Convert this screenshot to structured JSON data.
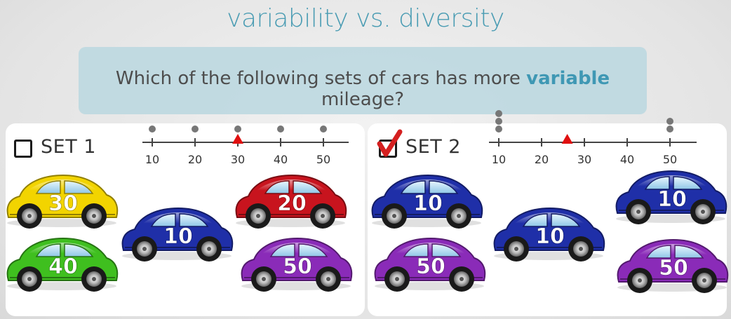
{
  "title": "variability vs. diversity",
  "question": {
    "prefix": "Which of the following sets of cars has more ",
    "emphasis": "variable",
    "suffix": " mileage?"
  },
  "sets": [
    {
      "label": "SET 1",
      "checked": false,
      "axis_ticks": [
        "10",
        "20",
        "30",
        "40",
        "50"
      ],
      "dots": [
        10,
        20,
        30,
        40,
        50
      ],
      "mean": 30,
      "cars": [
        {
          "mileage": "30",
          "color": "#f2d400"
        },
        {
          "mileage": "20",
          "color": "#c8141e"
        },
        {
          "mileage": "10",
          "color": "#1f2fa8"
        },
        {
          "mileage": "40",
          "color": "#3fbf1f"
        },
        {
          "mileage": "50",
          "color": "#8a2bb8"
        }
      ]
    },
    {
      "label": "SET 2",
      "checked": true,
      "axis_ticks": [
        "10",
        "20",
        "30",
        "40",
        "50"
      ],
      "dots": [
        10,
        10,
        10,
        50,
        50
      ],
      "mean": 26,
      "cars": [
        {
          "mileage": "10",
          "color": "#1f2fa8"
        },
        {
          "mileage": "10",
          "color": "#1f2fa8"
        },
        {
          "mileage": "10",
          "color": "#1f2fa8"
        },
        {
          "mileage": "50",
          "color": "#8a2bb8"
        },
        {
          "mileage": "50",
          "color": "#8a2bb8"
        }
      ]
    }
  ],
  "colors": {
    "accent": "#4a9cb3",
    "mean_marker": "#e01010",
    "dot": "#777777",
    "check": "#d42020"
  }
}
